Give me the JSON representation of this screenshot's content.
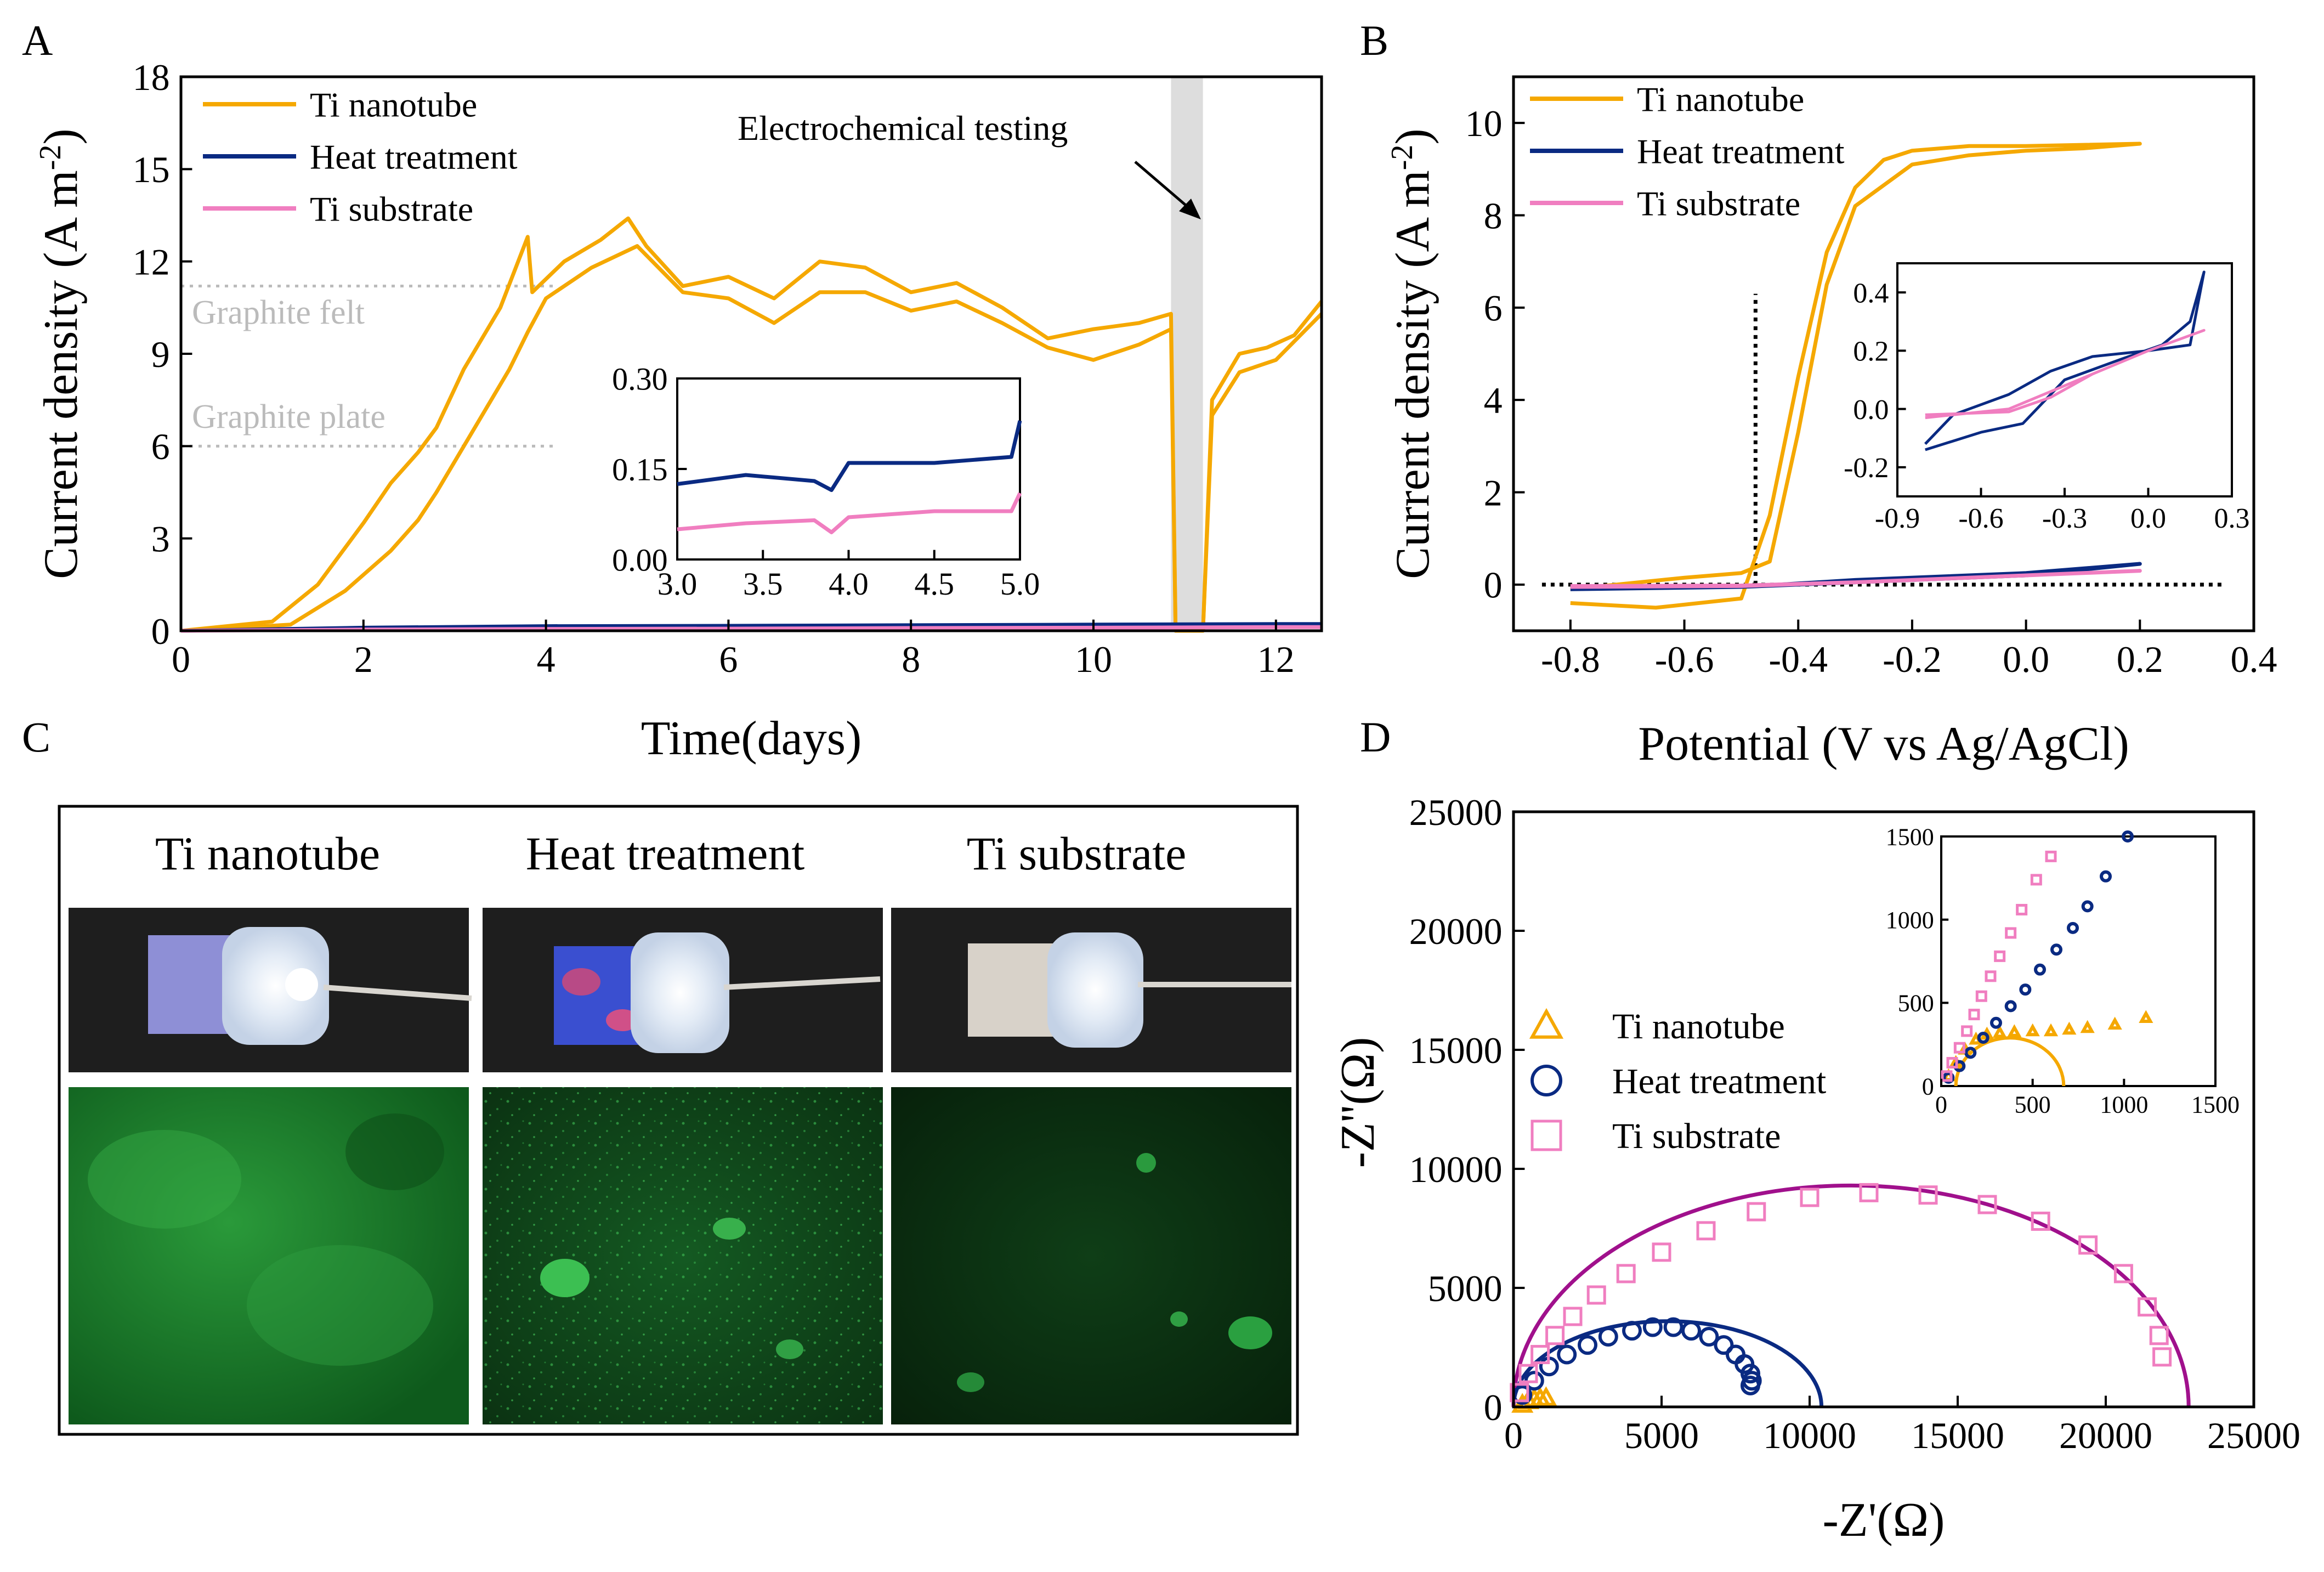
{
  "colors": {
    "ti_nanotube": "#F5A800",
    "heat_treatment": "#0A2A82",
    "ti_substrate": "#F07EC0",
    "fit_substrate": "#A0108C",
    "reference": "#BBBBBB",
    "highlight": "#DDDDDD"
  },
  "panel_labels": {
    "a": "A",
    "b": "B",
    "c": "C",
    "d": "D"
  },
  "panel_a": {
    "ylabel": "Current density (A m",
    "ylabel_sup": "-2",
    "ylabel_end": ")",
    "xlabel": "Time(days)",
    "annotation": "Electrochemical testing",
    "ref_felt": "Graphite felt",
    "ref_plate": "Graphite plate",
    "xticks": [
      "0",
      "2",
      "4",
      "6",
      "8",
      "10",
      "12"
    ],
    "yticks": [
      "0",
      "3",
      "6",
      "9",
      "12",
      "15",
      "18"
    ],
    "inset_xticks": [
      "3.0",
      "3.5",
      "4.0",
      "4.5",
      "5.0"
    ],
    "inset_yticks": [
      "0.00",
      "0.15",
      "0.30"
    ],
    "legend": [
      "Ti nanotube",
      "Heat treatment",
      "Ti substrate"
    ]
  },
  "panel_b": {
    "ylabel": "Current density (A m",
    "ylabel_sup": "-2",
    "ylabel_end": ")",
    "xlabel": "Potential (V vs Ag/AgCl)",
    "xticks": [
      "-0.8",
      "-0.6",
      "-0.4",
      "-0.2",
      "0.0",
      "0.2",
      "0.4"
    ],
    "yticks": [
      "0",
      "2",
      "4",
      "6",
      "8",
      "10"
    ],
    "inset_xticks": [
      "-0.9",
      "-0.6",
      "-0.3",
      "0.0",
      "0.3"
    ],
    "inset_yticks": [
      "-0.2",
      "0.0",
      "0.2",
      "0.4"
    ],
    "legend": [
      "Ti nanotube",
      "Heat treatment",
      "Ti substrate"
    ]
  },
  "panel_c": {
    "titles": [
      "Ti nanotube",
      "Heat treatment",
      "Ti substrate"
    ]
  },
  "panel_d": {
    "ylabel": "-Z''(Ω)",
    "xlabel": "-Z'(Ω)",
    "xticks": [
      "0",
      "5000",
      "10000",
      "15000",
      "20000",
      "25000"
    ],
    "yticks": [
      "0",
      "5000",
      "10000",
      "15000",
      "20000",
      "25000"
    ],
    "inset_xticks": [
      "0",
      "500",
      "1000",
      "1500"
    ],
    "inset_yticks": [
      "0",
      "500",
      "1000",
      "1500"
    ],
    "legend": [
      "Ti nanotube",
      "Heat treatment",
      "Ti substrate"
    ]
  },
  "chart_data": [
    {
      "panel": "A",
      "type": "line",
      "xlabel": "Time(days)",
      "ylabel": "Current density (A m-2)",
      "xlim": [
        0,
        12.5
      ],
      "ylim": [
        0,
        18
      ],
      "reference_lines": [
        {
          "label": "Graphite felt",
          "y": 11.2
        },
        {
          "label": "Graphite plate",
          "y": 6.0
        }
      ],
      "highlight_region": {
        "label": "Electrochemical testing",
        "x": [
          10.85,
          11.2
        ]
      },
      "series": [
        {
          "name": "Ti nanotube",
          "x": [
            0,
            1.0,
            1.5,
            2.0,
            2.3,
            2.6,
            2.8,
            3.1,
            3.5,
            3.8,
            3.85,
            4.2,
            4.6,
            4.9,
            5.1,
            5.5,
            6.0,
            6.5,
            7.0,
            7.5,
            8.0,
            8.5,
            9.0,
            9.5,
            10.0,
            10.5,
            10.85,
            10.9,
            11.2,
            11.3,
            11.6,
            11.9,
            12.2,
            12.5
          ],
          "y": [
            0,
            0.3,
            1.5,
            3.5,
            4.8,
            5.8,
            6.6,
            8.5,
            10.5,
            12.8,
            11.0,
            12.0,
            12.7,
            13.4,
            12.5,
            11.2,
            11.5,
            10.8,
            12.0,
            11.8,
            11.0,
            11.3,
            10.5,
            9.5,
            9.8,
            10.0,
            10.3,
            0,
            0,
            7.5,
            9.0,
            9.2,
            9.6,
            10.7
          ]
        },
        {
          "name": "Ti nanotube",
          "x": [
            0,
            1.2,
            1.8,
            2.3,
            2.6,
            2.8,
            3.2,
            3.6,
            3.8,
            4.0,
            4.5,
            5.0,
            5.5,
            6.0,
            6.5,
            7.0,
            7.5,
            8.0,
            8.5,
            9.0,
            9.5,
            10.0,
            10.5,
            10.85,
            10.9,
            11.2,
            11.3,
            11.6,
            12.0,
            12.5
          ],
          "y": [
            0,
            0.2,
            1.3,
            2.6,
            3.6,
            4.5,
            6.5,
            8.5,
            9.7,
            10.8,
            11.8,
            12.5,
            11.0,
            10.8,
            10.0,
            11.0,
            11.0,
            10.4,
            10.7,
            10.0,
            9.2,
            8.8,
            9.3,
            9.8,
            0,
            0,
            7.0,
            8.4,
            8.8,
            10.3
          ]
        },
        {
          "name": "Heat treatment",
          "x": [
            0,
            1,
            2,
            4,
            6,
            8,
            10,
            12,
            12.5
          ],
          "y": [
            0,
            0.05,
            0.1,
            0.15,
            0.16,
            0.18,
            0.2,
            0.22,
            0.22
          ]
        },
        {
          "name": "Ti substrate",
          "x": [
            0,
            1,
            2,
            4,
            6,
            8,
            10,
            12,
            12.5
          ],
          "y": [
            0,
            0.02,
            0.04,
            0.06,
            0.07,
            0.09,
            0.1,
            0.12,
            0.12
          ]
        }
      ],
      "inset": {
        "xlim": [
          3.0,
          5.0
        ],
        "ylim": [
          0,
          0.3
        ],
        "series": [
          {
            "name": "Heat treatment",
            "x": [
              3.0,
              3.4,
              3.8,
              3.9,
              4.0,
              4.5,
              4.95,
              5.0
            ],
            "y": [
              0.125,
              0.14,
              0.13,
              0.115,
              0.16,
              0.16,
              0.17,
              0.23
            ]
          },
          {
            "name": "Ti substrate",
            "x": [
              3.0,
              3.4,
              3.8,
              3.9,
              4.0,
              4.5,
              4.95,
              5.0
            ],
            "y": [
              0.05,
              0.06,
              0.065,
              0.045,
              0.07,
              0.08,
              0.08,
              0.11
            ]
          }
        ]
      }
    },
    {
      "panel": "B",
      "type": "line",
      "xlabel": "Potential (V vs Ag/AgCl)",
      "ylabel": "Current density (A m-2)",
      "xlim": [
        -0.9,
        0.4
      ],
      "ylim": [
        -1,
        11
      ],
      "reference_lines": [
        {
          "orientation": "vertical",
          "x": -0.475,
          "y": [
            0,
            6.3
          ]
        },
        {
          "orientation": "horizontal",
          "y": 0,
          "x": [
            -0.85,
            0.35
          ]
        }
      ],
      "series": [
        {
          "name": "Ti nanotube",
          "x": [
            -0.8,
            -0.65,
            -0.5,
            -0.45,
            -0.4,
            -0.35,
            -0.3,
            -0.25,
            -0.2,
            -0.1,
            0.0,
            0.2,
            0.1,
            0.0,
            -0.1,
            -0.2,
            -0.3,
            -0.35,
            -0.4,
            -0.45,
            -0.5,
            -0.6,
            -0.8
          ],
          "y": [
            -0.4,
            -0.5,
            -0.3,
            1.5,
            4.5,
            7.2,
            8.6,
            9.2,
            9.4,
            9.5,
            9.5,
            9.55,
            9.45,
            9.4,
            9.3,
            9.1,
            8.2,
            6.5,
            3.3,
            0.5,
            0.25,
            0.15,
            -0.1
          ]
        },
        {
          "name": "Heat treatment",
          "x": [
            -0.8,
            -0.5,
            -0.3,
            0.0,
            0.2,
            0.0,
            -0.3,
            -0.5,
            -0.8
          ],
          "y": [
            -0.1,
            -0.05,
            0.1,
            0.25,
            0.45,
            0.2,
            0.05,
            -0.05,
            -0.05
          ]
        },
        {
          "name": "Ti substrate",
          "x": [
            -0.8,
            -0.5,
            -0.3,
            0.0,
            0.2,
            0.0,
            -0.3,
            -0.5,
            -0.8
          ],
          "y": [
            -0.05,
            -0.03,
            0.05,
            0.2,
            0.3,
            0.2,
            0.05,
            -0.02,
            -0.03
          ]
        }
      ],
      "inset": {
        "xlim": [
          -0.9,
          0.3
        ],
        "ylim": [
          -0.3,
          0.5
        ],
        "series": [
          {
            "name": "Heat treatment",
            "x": [
              -0.8,
              -0.6,
              -0.45,
              -0.3,
              -0.1,
              0.05,
              0.15,
              0.2,
              0.15,
              0.0,
              -0.2,
              -0.35,
              -0.5,
              -0.7,
              -0.8
            ],
            "y": [
              -0.14,
              -0.08,
              -0.05,
              0.1,
              0.17,
              0.22,
              0.3,
              0.47,
              0.22,
              0.2,
              0.18,
              0.13,
              0.05,
              -0.02,
              -0.12
            ]
          },
          {
            "name": "Ti substrate",
            "x": [
              -0.8,
              -0.5,
              -0.35,
              -0.2,
              0.0,
              0.2,
              0.0,
              -0.2,
              -0.35,
              -0.5,
              -0.8
            ],
            "y": [
              -0.02,
              -0.01,
              0.04,
              0.12,
              0.2,
              0.27,
              0.2,
              0.12,
              0.06,
              0.0,
              -0.03
            ]
          }
        ]
      }
    },
    {
      "panel": "D",
      "type": "scatter",
      "xlabel": "-Z'(Ω)",
      "ylabel": "-Z''(Ω)",
      "xlim": [
        0,
        25000
      ],
      "ylim": [
        0,
        25000
      ],
      "series": [
        {
          "name": "Ti nanotube",
          "x": [
            300,
            500,
            700,
            900,
            1100
          ],
          "y": [
            100,
            250,
            330,
            360,
            380
          ]
        },
        {
          "name": "Heat treatment",
          "x": [
            300,
            700,
            1200,
            1800,
            2500,
            3200,
            4000,
            4700,
            5400,
            6000,
            6600,
            7100,
            7500,
            7800,
            8000,
            8050,
            8000
          ],
          "y": [
            500,
            1100,
            1700,
            2200,
            2600,
            2950,
            3200,
            3350,
            3350,
            3200,
            2950,
            2600,
            2200,
            1800,
            1400,
            1100,
            900
          ]
        },
        {
          "name": "Ti substrate",
          "x": [
            200,
            500,
            900,
            1400,
            2000,
            2800,
            3800,
            5000,
            6500,
            8200,
            10000,
            12000,
            14000,
            16000,
            17800,
            19400,
            20600,
            21400,
            21800,
            21900
          ],
          "y": [
            600,
            1400,
            2200,
            3000,
            3800,
            4700,
            5600,
            6500,
            7400,
            8200,
            8800,
            9000,
            8900,
            8500,
            7800,
            6800,
            5600,
            4200,
            3000,
            2100
          ]
        },
        {
          "name": "Ti nanotube fit",
          "x": [
            200,
            350,
            500,
            650
          ],
          "y": [
            0,
            250,
            290,
            0
          ]
        },
        {
          "name": "Heat treatment fit",
          "x": [
            0,
            5200,
            10400
          ],
          "y": [
            0,
            3600,
            0
          ]
        },
        {
          "name": "Ti substrate fit",
          "x": [
            0,
            11400,
            22800
          ],
          "y": [
            0,
            9300,
            0
          ]
        }
      ],
      "inset": {
        "xlim": [
          0,
          1500
        ],
        "ylim": [
          0,
          1500
        ],
        "series": [
          {
            "name": "Ti nanotube",
            "x": [
              40,
              80,
              130,
              190,
              250,
              320,
              400,
              500,
              600,
              700,
              800,
              950,
              1120
            ],
            "y": [
              60,
              140,
              220,
              280,
              310,
              320,
              325,
              330,
              330,
              340,
              350,
              370,
              410
            ]
          },
          {
            "name": "Heat treatment",
            "x": [
              40,
              100,
              160,
              230,
              300,
              380,
              460,
              540,
              630,
              720,
              800,
              900,
              1020
            ],
            "y": [
              50,
              120,
              200,
              290,
              380,
              480,
              580,
              700,
              820,
              950,
              1080,
              1260,
              1500
            ]
          },
          {
            "name": "Ti substrate",
            "x": [
              30,
              60,
              100,
              140,
              180,
              220,
              270,
              320,
              380,
              440,
              520,
              600
            ],
            "y": [
              60,
              140,
              230,
              330,
              430,
              540,
              660,
              780,
              920,
              1060,
              1240,
              1380
            ]
          }
        ]
      }
    }
  ]
}
